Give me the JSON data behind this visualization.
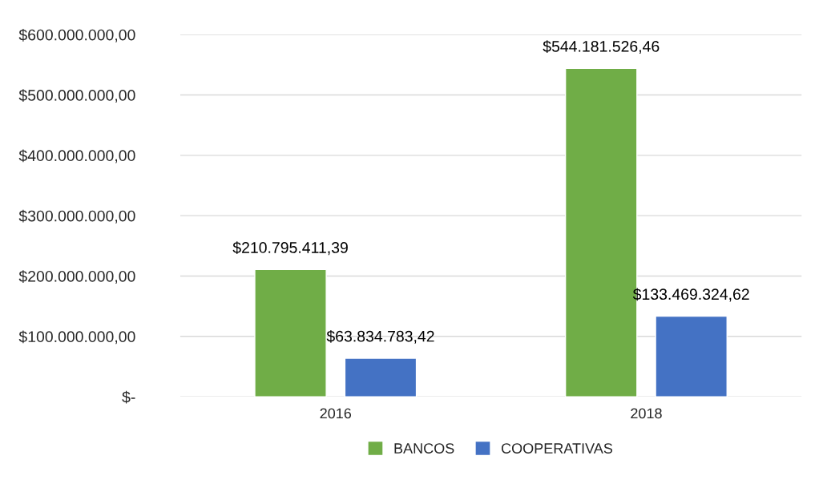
{
  "chart_data": {
    "type": "bar",
    "categories": [
      "2016",
      "2018"
    ],
    "series": [
      {
        "name": "BANCOS",
        "color": "#70ad47",
        "values": [
          210795411.39,
          544181526.46
        ],
        "value_labels": [
          "$210.795.411,39",
          "$544.181.526,46"
        ]
      },
      {
        "name": "COOPERATIVAS",
        "color": "#4472c4",
        "values": [
          63834783.42,
          133469324.62
        ],
        "value_labels": [
          "$63.834.783,42",
          "$133.469.324,62"
        ]
      }
    ],
    "ylim": [
      0,
      600000000
    ],
    "yticks": [
      {
        "value": 0,
        "label": "$-"
      },
      {
        "value": 100000000,
        "label": "$100.000.000,00"
      },
      {
        "value": 200000000,
        "label": "$200.000.000,00"
      },
      {
        "value": 300000000,
        "label": "$300.000.000,00"
      },
      {
        "value": 400000000,
        "label": "$400.000.000,00"
      },
      {
        "value": 500000000,
        "label": "$500.000.000,00"
      },
      {
        "value": 600000000,
        "label": "$600.000.000,00"
      }
    ],
    "grid": "y",
    "legend": "bottom"
  }
}
